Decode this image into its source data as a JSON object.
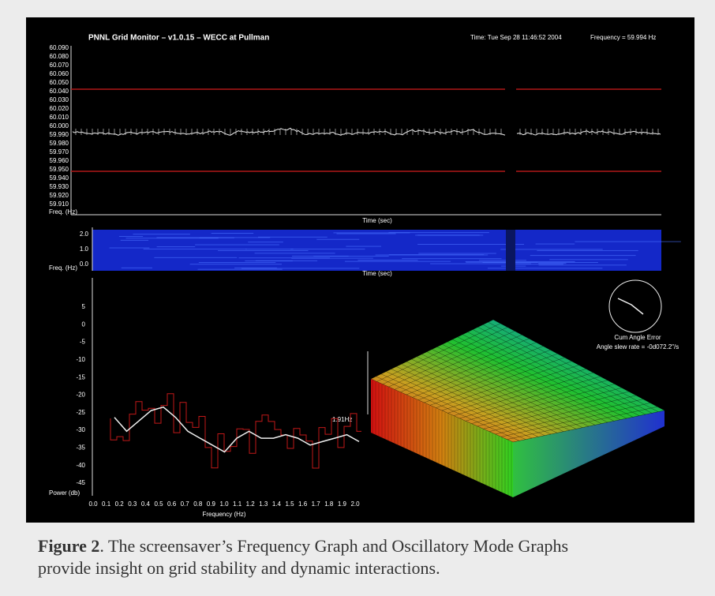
{
  "header": {
    "title": "PNNL Grid Monitor – v1.0.15 – WECC at Pullman",
    "time": "Time: Tue Sep 28 11:46:52 2004",
    "frequency": "Frequency = 59.994 Hz"
  },
  "frequency_graph": {
    "y_labels": [
      "60.090",
      "60.080",
      "60.070",
      "60.060",
      "60.050",
      "60.040",
      "60.030",
      "60.020",
      "60.010",
      "60.000",
      "59.990",
      "59.980",
      "59.970",
      "59.960",
      "59.950",
      "59.940",
      "59.930",
      "59.920",
      "59.910"
    ],
    "y_axis_label": "Freq. (Hz)",
    "x_axis_label": "Time (sec)"
  },
  "spectrogram": {
    "y_labels": [
      "2.0",
      "1.0",
      "0.0"
    ],
    "y_axis_label": "Freq. (Hz)",
    "x_axis_label": "Time (sec)"
  },
  "spectrum": {
    "y_labels": [
      "5",
      "0",
      "-5",
      "-10",
      "-15",
      "-20",
      "-25",
      "-30",
      "-35",
      "-40",
      "-45"
    ],
    "y_axis_label": "Power (db)",
    "x_labels": [
      "0.0",
      "0.1",
      "0.2",
      "0.3",
      "0.4",
      "0.5",
      "0.6",
      "0.7",
      "0.8",
      "0.9",
      "1.0",
      "1.1",
      "1.2",
      "1.3",
      "1.4",
      "1.5",
      "1.6",
      "1.7",
      "1.8",
      "1.9",
      "2.0"
    ],
    "x_axis_label": "Frequency (Hz)",
    "marker": "1.91Hz"
  },
  "angle": {
    "title": "Cum Angle Error",
    "slew_rate": "Angle slew rate = -0d072.2\"/s"
  },
  "caption": {
    "label": "Figure 2",
    "text": ". The screensaver’s Frequency Graph and Oscillatory Mode Graphs provide insight on grid stability and dynamic interactions."
  }
}
